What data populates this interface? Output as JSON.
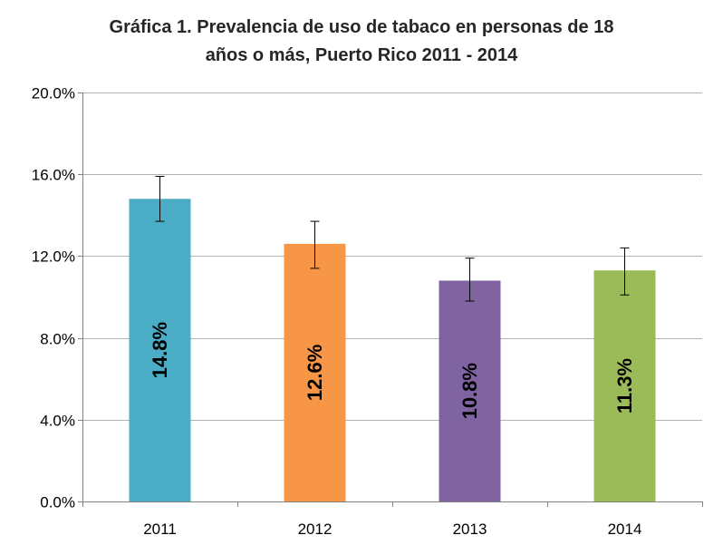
{
  "chart_data": {
    "type": "bar",
    "title_lines": [
      "Gráfica 1. Prevalencia de uso de tabaco en personas de 18",
      "años o más, Puerto Rico 2011 - 2014"
    ],
    "categories": [
      "2011",
      "2012",
      "2013",
      "2014"
    ],
    "values": [
      14.8,
      12.6,
      10.8,
      11.3
    ],
    "data_labels": [
      "14.8%",
      "12.6%",
      "10.8%",
      "11.3%"
    ],
    "error_low": [
      13.7,
      11.4,
      9.8,
      10.1
    ],
    "error_high": [
      15.9,
      13.7,
      11.9,
      12.4
    ],
    "colors": [
      "#4bacc6",
      "#f79646",
      "#8064a2",
      "#9bbb59"
    ],
    "ylim": [
      0,
      20
    ],
    "yticks": [
      0,
      4,
      8,
      12,
      16,
      20
    ],
    "ytick_labels": [
      "0.0%",
      "4.0%",
      "8.0%",
      "12.0%",
      "16.0%",
      "20.0%"
    ],
    "grid": true,
    "xlabel": "",
    "ylabel": ""
  }
}
